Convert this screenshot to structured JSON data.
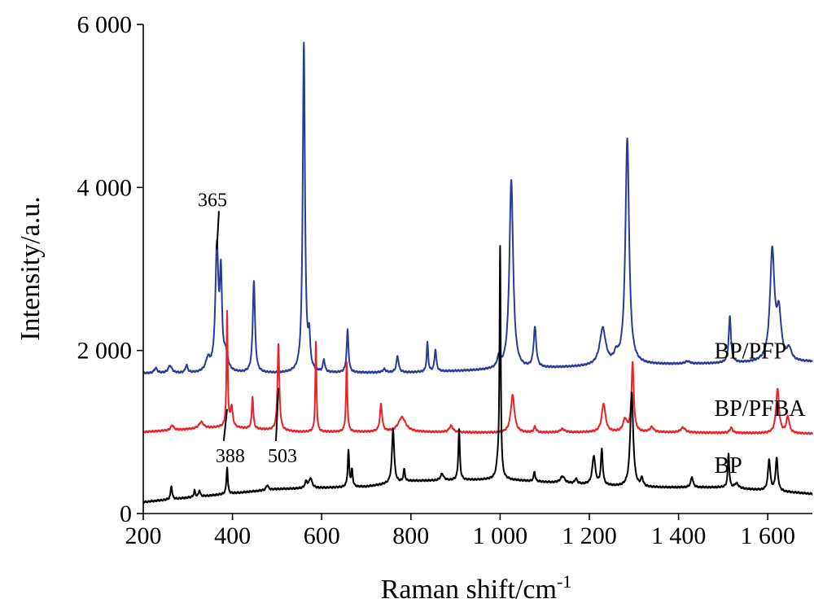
{
  "chart_data": {
    "type": "line",
    "xlabel": "Raman shift/cm",
    "xlabel_sup": "-1",
    "ylabel": "Intensity/a.u.",
    "xlim": [
      200,
      1700
    ],
    "ylim": [
      0,
      6000
    ],
    "x_ticks": [
      {
        "value": 200,
        "label": "200"
      },
      {
        "value": 400,
        "label": "400"
      },
      {
        "value": 600,
        "label": "600"
      },
      {
        "value": 800,
        "label": "800"
      },
      {
        "value": 1000,
        "label": "1 000"
      },
      {
        "value": 1200,
        "label": "1 200"
      },
      {
        "value": 1400,
        "label": "1 400"
      },
      {
        "value": 1600,
        "label": "1 600"
      }
    ],
    "y_ticks": [
      {
        "value": 0,
        "label": "0"
      },
      {
        "value": 2000,
        "label": "2 000"
      },
      {
        "value": 4000,
        "label": "4 000"
      },
      {
        "value": 6000,
        "label": "6 000"
      }
    ],
    "series": [
      {
        "name": "BP/PFP",
        "color": "#2b3a9a",
        "baseline": [
          [
            200,
            1720
          ],
          [
            500,
            1720
          ],
          [
            800,
            1730
          ],
          [
            990,
            1760
          ],
          [
            1300,
            1820
          ],
          [
            1600,
            1850
          ],
          [
            1700,
            1860
          ]
        ],
        "peaks": [
          {
            "x": 228,
            "h": 60,
            "w": 4
          },
          {
            "x": 260,
            "h": 90,
            "w": 5
          },
          {
            "x": 297,
            "h": 90,
            "w": 3
          },
          {
            "x": 345,
            "h": 150,
            "w": 6
          },
          {
            "x": 365,
            "h": 1500,
            "w": 4
          },
          {
            "x": 374,
            "h": 1100,
            "w": 3
          },
          {
            "x": 385,
            "h": 200,
            "w": 5
          },
          {
            "x": 448,
            "h": 1130,
            "w": 3
          },
          {
            "x": 560,
            "h": 4030,
            "w": 3
          },
          {
            "x": 572,
            "h": 380,
            "w": 2.5
          },
          {
            "x": 605,
            "h": 150,
            "w": 2.5
          },
          {
            "x": 658,
            "h": 520,
            "w": 2.5
          },
          {
            "x": 740,
            "h": 40,
            "w": 4
          },
          {
            "x": 770,
            "h": 200,
            "w": 3
          },
          {
            "x": 837,
            "h": 360,
            "w": 2
          },
          {
            "x": 855,
            "h": 270,
            "w": 2.5
          },
          {
            "x": 997,
            "h": 130,
            "w": 4
          },
          {
            "x": 1025,
            "h": 2320,
            "w": 5
          },
          {
            "x": 1078,
            "h": 490,
            "w": 3.5
          },
          {
            "x": 1230,
            "h": 450,
            "w": 8
          },
          {
            "x": 1260,
            "h": 100,
            "w": 5
          },
          {
            "x": 1285,
            "h": 2770,
            "w": 5
          },
          {
            "x": 1420,
            "h": 30,
            "w": 6
          },
          {
            "x": 1515,
            "h": 570,
            "w": 3
          },
          {
            "x": 1610,
            "h": 1340,
            "w": 6
          },
          {
            "x": 1625,
            "h": 550,
            "w": 6
          },
          {
            "x": 1648,
            "h": 140,
            "w": 6
          }
        ]
      },
      {
        "name": "BP/PFBA",
        "color": "#e8232b",
        "baseline": [
          [
            200,
            1000
          ],
          [
            380,
            1060
          ],
          [
            550,
            1000
          ],
          [
            800,
            1000
          ],
          [
            1000,
            990
          ],
          [
            1300,
            1000
          ],
          [
            1700,
            980
          ]
        ],
        "peaks": [
          {
            "x": 265,
            "h": 60,
            "w": 4
          },
          {
            "x": 330,
            "h": 80,
            "w": 6
          },
          {
            "x": 388,
            "h": 1400,
            "w": 1.6
          },
          {
            "x": 398,
            "h": 250,
            "w": 3
          },
          {
            "x": 445,
            "h": 400,
            "w": 2
          },
          {
            "x": 503,
            "h": 1060,
            "w": 2.5
          },
          {
            "x": 587,
            "h": 1100,
            "w": 1.6
          },
          {
            "x": 656,
            "h": 850,
            "w": 1.8
          },
          {
            "x": 733,
            "h": 330,
            "w": 3
          },
          {
            "x": 780,
            "h": 180,
            "w": 10
          },
          {
            "x": 890,
            "h": 80,
            "w": 5
          },
          {
            "x": 1028,
            "h": 460,
            "w": 5
          },
          {
            "x": 1078,
            "h": 70,
            "w": 3
          },
          {
            "x": 1140,
            "h": 40,
            "w": 6
          },
          {
            "x": 1232,
            "h": 350,
            "w": 5
          },
          {
            "x": 1280,
            "h": 150,
            "w": 5
          },
          {
            "x": 1297,
            "h": 840,
            "w": 3
          },
          {
            "x": 1340,
            "h": 60,
            "w": 5
          },
          {
            "x": 1410,
            "h": 60,
            "w": 6
          },
          {
            "x": 1518,
            "h": 60,
            "w": 4
          },
          {
            "x": 1622,
            "h": 540,
            "w": 4
          },
          {
            "x": 1645,
            "h": 200,
            "w": 4
          }
        ]
      },
      {
        "name": "BP",
        "color": "#000000",
        "baseline": [
          [
            200,
            140
          ],
          [
            500,
            300
          ],
          [
            700,
            330
          ],
          [
            800,
            400
          ],
          [
            1000,
            420
          ],
          [
            1300,
            320
          ],
          [
            1500,
            320
          ],
          [
            1700,
            240
          ]
        ],
        "peaks": [
          {
            "x": 263,
            "h": 170,
            "w": 2
          },
          {
            "x": 315,
            "h": 80,
            "w": 2
          },
          {
            "x": 326,
            "h": 80,
            "w": 2
          },
          {
            "x": 388,
            "h": 330,
            "w": 1.8
          },
          {
            "x": 478,
            "h": 60,
            "w": 3
          },
          {
            "x": 565,
            "h": 80,
            "w": 3
          },
          {
            "x": 575,
            "h": 120,
            "w": 4
          },
          {
            "x": 660,
            "h": 440,
            "w": 2
          },
          {
            "x": 668,
            "h": 200,
            "w": 2
          },
          {
            "x": 760,
            "h": 660,
            "w": 3
          },
          {
            "x": 785,
            "h": 150,
            "w": 2
          },
          {
            "x": 870,
            "h": 80,
            "w": 4
          },
          {
            "x": 908,
            "h": 620,
            "w": 2
          },
          {
            "x": 995,
            "h": 150,
            "w": 4
          },
          {
            "x": 1000,
            "h": 2800,
            "w": 1.6
          },
          {
            "x": 1077,
            "h": 120,
            "w": 2
          },
          {
            "x": 1140,
            "h": 80,
            "w": 6
          },
          {
            "x": 1170,
            "h": 60,
            "w": 3
          },
          {
            "x": 1210,
            "h": 350,
            "w": 4
          },
          {
            "x": 1228,
            "h": 430,
            "w": 2.5
          },
          {
            "x": 1295,
            "h": 1160,
            "w": 4
          },
          {
            "x": 1318,
            "h": 100,
            "w": 3
          },
          {
            "x": 1430,
            "h": 130,
            "w": 3
          },
          {
            "x": 1512,
            "h": 420,
            "w": 2
          },
          {
            "x": 1530,
            "h": 60,
            "w": 5
          },
          {
            "x": 1603,
            "h": 380,
            "w": 3
          },
          {
            "x": 1620,
            "h": 400,
            "w": 3
          }
        ]
      }
    ],
    "series_labels": [
      {
        "text": "BP/PFP",
        "x": 1480,
        "y": 2000
      },
      {
        "text": "BP/PFBA",
        "x": 1480,
        "y": 1300
      },
      {
        "text": "BP",
        "x": 1480,
        "y": 600
      }
    ],
    "annotations": [
      {
        "text": "365",
        "label_x": 355,
        "label_y": 3770,
        "point_x": 365,
        "point_y": 3240
      },
      {
        "text": "388",
        "label_x": 395,
        "label_y": 630,
        "point_x": 388,
        "point_y": 1280
      },
      {
        "text": "503",
        "label_x": 512,
        "label_y": 630,
        "point_x": 503,
        "point_y": 1540
      }
    ]
  }
}
